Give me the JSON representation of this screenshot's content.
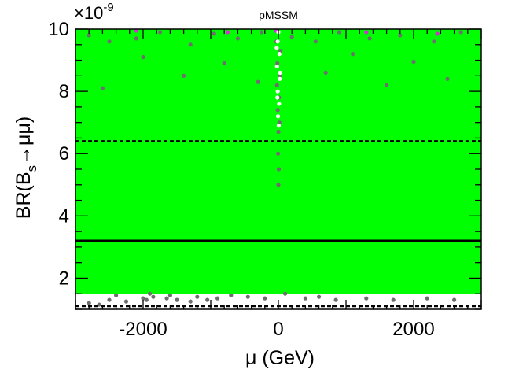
{
  "chart_data": {
    "type": "scatter",
    "title": "pMSSM",
    "xlabel": "μ (GeV)",
    "ylabel": "BR(B_s→μμ)",
    "ylabel_parts": {
      "pre": "BR(B",
      "sub": "s",
      "post": "→μμ)"
    },
    "y_multiplier": {
      "base": "×10",
      "exponent": "-9"
    },
    "xlim": [
      -3000,
      3000
    ],
    "ylim": [
      1.0,
      10.0
    ],
    "x_ticks": [
      {
        "value": -2000,
        "label": "-2000"
      },
      {
        "value": 0,
        "label": "0"
      },
      {
        "value": 2000,
        "label": "2000"
      }
    ],
    "y_ticks": [
      {
        "value": 2,
        "label": "2"
      },
      {
        "value": 4,
        "label": "4"
      },
      {
        "value": 6,
        "label": "6"
      },
      {
        "value": 8,
        "label": "8"
      },
      {
        "value": 10,
        "label": "10"
      }
    ],
    "green_region": {
      "color": "#00ff00",
      "x": [
        -3000,
        3000
      ],
      "y": [
        1.5,
        10.0
      ]
    },
    "reference_lines": [
      {
        "y": 3.2,
        "style": "solid",
        "color": "#000000"
      },
      {
        "y": 6.4,
        "style": "dashed",
        "color": "#000000"
      },
      {
        "y": 1.1,
        "style": "dashed",
        "color": "#000000"
      }
    ],
    "series": [
      {
        "color": "#6e6e6e",
        "points": [
          [
            -2800,
            1.2
          ],
          [
            -2650,
            1.15
          ],
          [
            -2500,
            1.3
          ],
          [
            -2400,
            1.45
          ],
          [
            -2250,
            1.25
          ],
          [
            -2000,
            1.35
          ],
          [
            -1950,
            1.3
          ],
          [
            -1900,
            1.5
          ],
          [
            -1850,
            1.4
          ],
          [
            -1650,
            1.35
          ],
          [
            -1600,
            1.45
          ],
          [
            -1500,
            1.3
          ],
          [
            -1300,
            1.25
          ],
          [
            -1200,
            1.4
          ],
          [
            -1050,
            1.3
          ],
          [
            -900,
            1.35
          ],
          [
            -700,
            1.45
          ],
          [
            -450,
            1.4
          ],
          [
            -200,
            1.35
          ],
          [
            100,
            1.5
          ],
          [
            400,
            1.35
          ],
          [
            600,
            1.4
          ],
          [
            850,
            1.3
          ],
          [
            1300,
            1.35
          ],
          [
            1700,
            1.3
          ],
          [
            2200,
            1.35
          ],
          [
            2600,
            1.3
          ],
          [
            -2800,
            9.8
          ],
          [
            -2500,
            9.6
          ],
          [
            -2100,
            9.7
          ],
          [
            -1750,
            9.9
          ],
          [
            -1300,
            9.5
          ],
          [
            -950,
            9.85
          ],
          [
            -600,
            9.7
          ],
          [
            -250,
            9.9
          ],
          [
            200,
            9.75
          ],
          [
            550,
            9.6
          ],
          [
            900,
            9.9
          ],
          [
            1350,
            9.7
          ],
          [
            1800,
            9.8
          ],
          [
            2300,
            9.6
          ],
          [
            2700,
            9.9
          ],
          [
            -2600,
            8.1
          ],
          [
            -1400,
            8.5
          ],
          [
            -300,
            8.3
          ],
          [
            700,
            8.6
          ],
          [
            1600,
            8.2
          ],
          [
            2500,
            8.4
          ],
          [
            -2000,
            9.1
          ],
          [
            1100,
            9.2
          ],
          [
            -800,
            8.9
          ],
          [
            2000,
            8.95
          ],
          [
            -30,
            9.6
          ],
          [
            30,
            9.3
          ],
          [
            -15,
            8.9
          ],
          [
            20,
            8.5
          ],
          [
            -20,
            8.2
          ],
          [
            10,
            7.8
          ],
          [
            -10,
            7.4
          ],
          [
            15,
            7.0
          ],
          [
            0,
            6.7
          ],
          [
            -5,
            6.0
          ],
          [
            5,
            5.5
          ],
          [
            0,
            5.0
          ]
        ]
      },
      {
        "color": "#cc33cc",
        "points": [
          [
            -2100,
            9.95
          ],
          [
            -750,
            9.9
          ],
          [
            -40,
            9.95
          ],
          [
            1300,
            9.9
          ],
          [
            2350,
            9.85
          ]
        ]
      },
      {
        "color": "#ffffff",
        "points": [
          [
            0,
            9.9
          ],
          [
            -10,
            9.6
          ],
          [
            15,
            9.2
          ],
          [
            -20,
            8.8
          ],
          [
            20,
            8.4
          ],
          [
            -10,
            8.0
          ],
          [
            10,
            7.6
          ],
          [
            -5,
            7.2
          ],
          [
            5,
            6.9
          ],
          [
            -25,
            9.4
          ],
          [
            25,
            8.6
          ],
          [
            -15,
            7.8
          ]
        ]
      }
    ]
  }
}
